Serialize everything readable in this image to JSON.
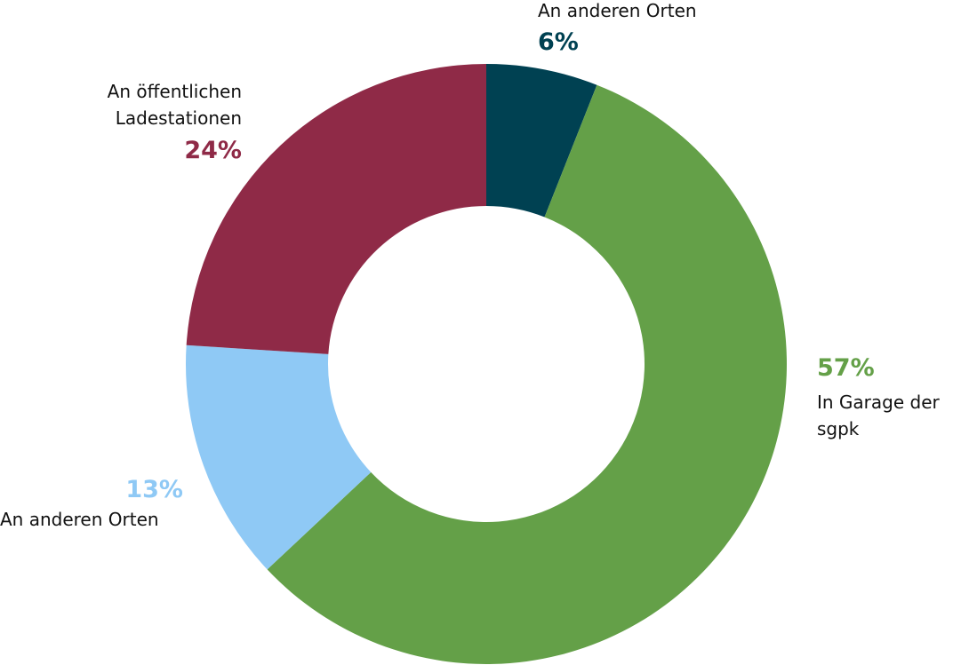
{
  "chart_data": {
    "type": "donut",
    "series": [
      {
        "name": "An anderen Orten",
        "color": "#004152",
        "values": [
          6
        ],
        "value_labels": [
          "6%"
        ]
      },
      {
        "name": "In Garage der sgpk",
        "color": "#64a048",
        "values": [
          57
        ],
        "value_labels": [
          "57%"
        ]
      },
      {
        "name": "An anderen Orten",
        "color": "#8fc9f5",
        "values": [
          13
        ],
        "value_labels": [
          "13%"
        ]
      },
      {
        "name": "An öffentlichen Ladestationen",
        "color": "#8f2a47",
        "values": [
          24
        ],
        "value_labels": [
          "24%"
        ]
      }
    ]
  }
}
